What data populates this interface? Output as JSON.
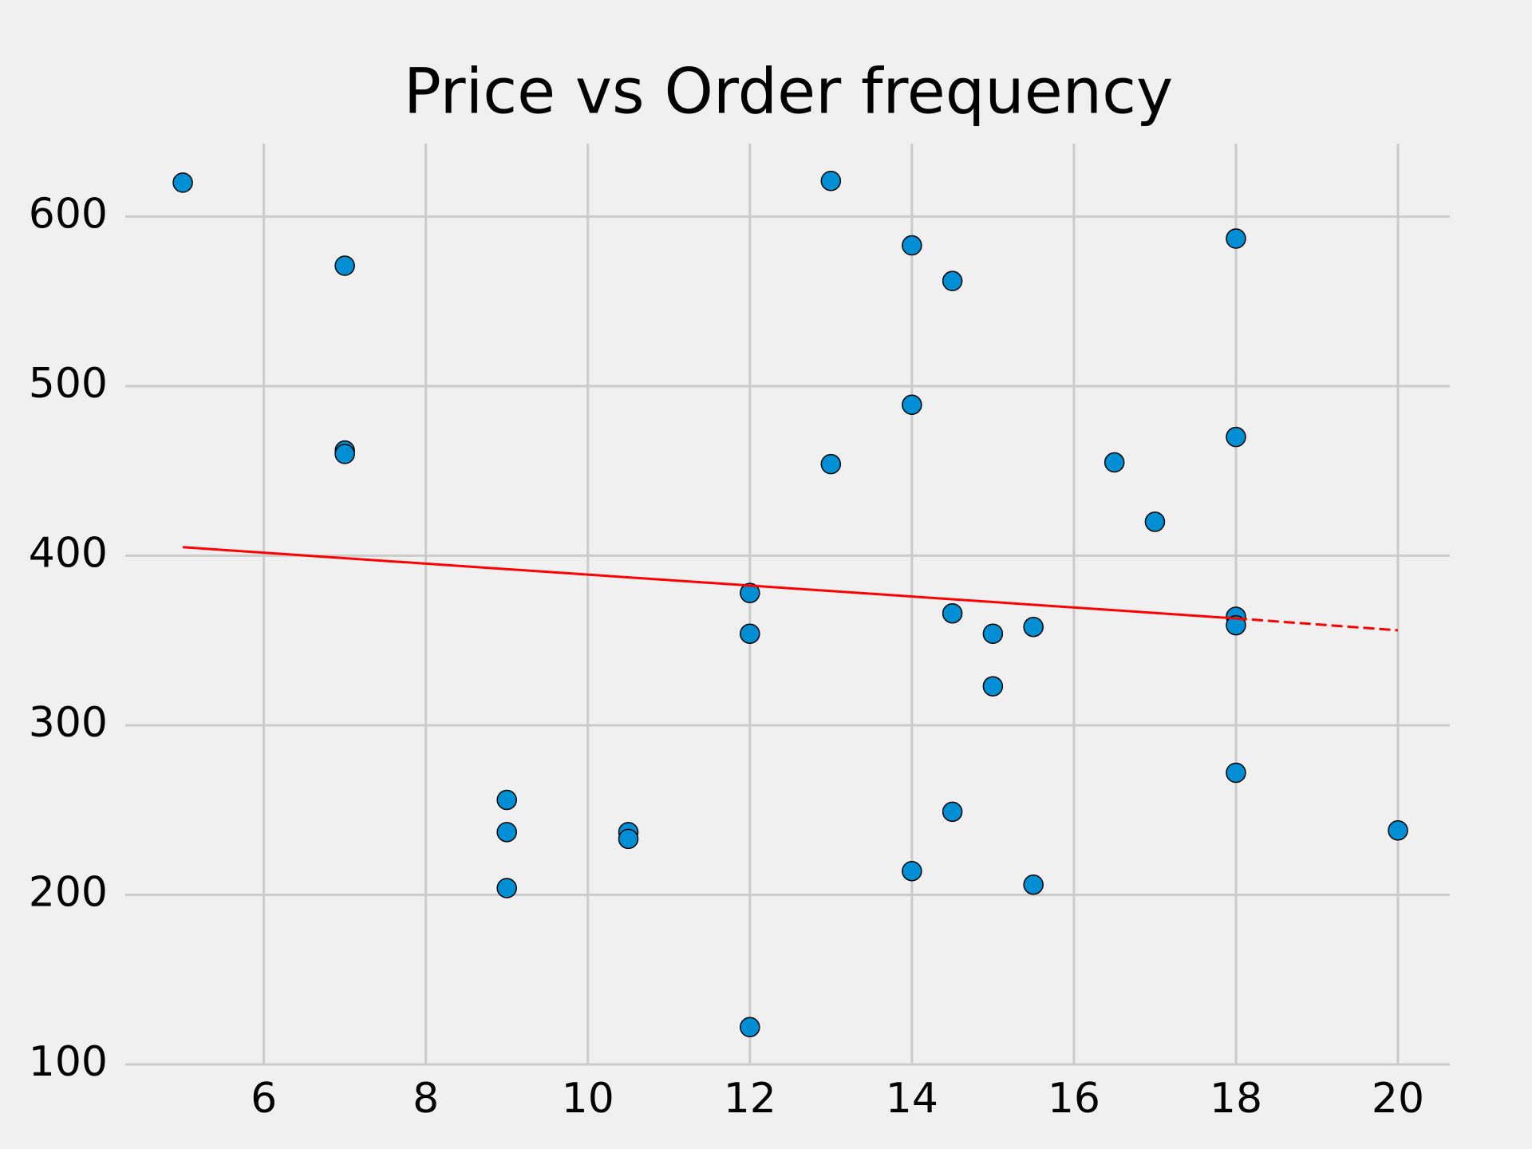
{
  "chart_data": {
    "type": "scatter",
    "title": "Price vs Order frequency",
    "x": [
      5,
      7,
      7,
      7,
      9,
      9,
      9,
      10.5,
      10.5,
      12,
      12,
      12,
      13,
      13,
      14,
      14,
      14,
      14.5,
      14.5,
      14.5,
      15,
      15,
      15.5,
      15.5,
      16.5,
      17,
      18,
      18,
      18,
      18,
      18,
      20
    ],
    "values": [
      620,
      571,
      462,
      460,
      256,
      237,
      204,
      237,
      233,
      378,
      354,
      122,
      621,
      454,
      583,
      489,
      214,
      562,
      366,
      249,
      354,
      323,
      358,
      206,
      455,
      420,
      587,
      470,
      364,
      359,
      272,
      238
    ],
    "color": "#008fd5",
    "edge_color": "#000000",
    "trend": {
      "x": [
        5,
        18
      ],
      "values": [
        405,
        363
      ],
      "color": "#ff0000",
      "dash": false
    },
    "trend_extension": {
      "x": [
        18,
        20
      ],
      "values": [
        363,
        356
      ],
      "color": "#ff0000",
      "dash": true
    },
    "xlim": [
      4.29,
      20.64
    ],
    "ylim": [
      100,
      643
    ],
    "xticks": [
      6,
      8,
      10,
      12,
      14,
      16,
      18,
      20
    ],
    "yticks": [
      100,
      200,
      300,
      400,
      500,
      600
    ],
    "grid": true
  }
}
